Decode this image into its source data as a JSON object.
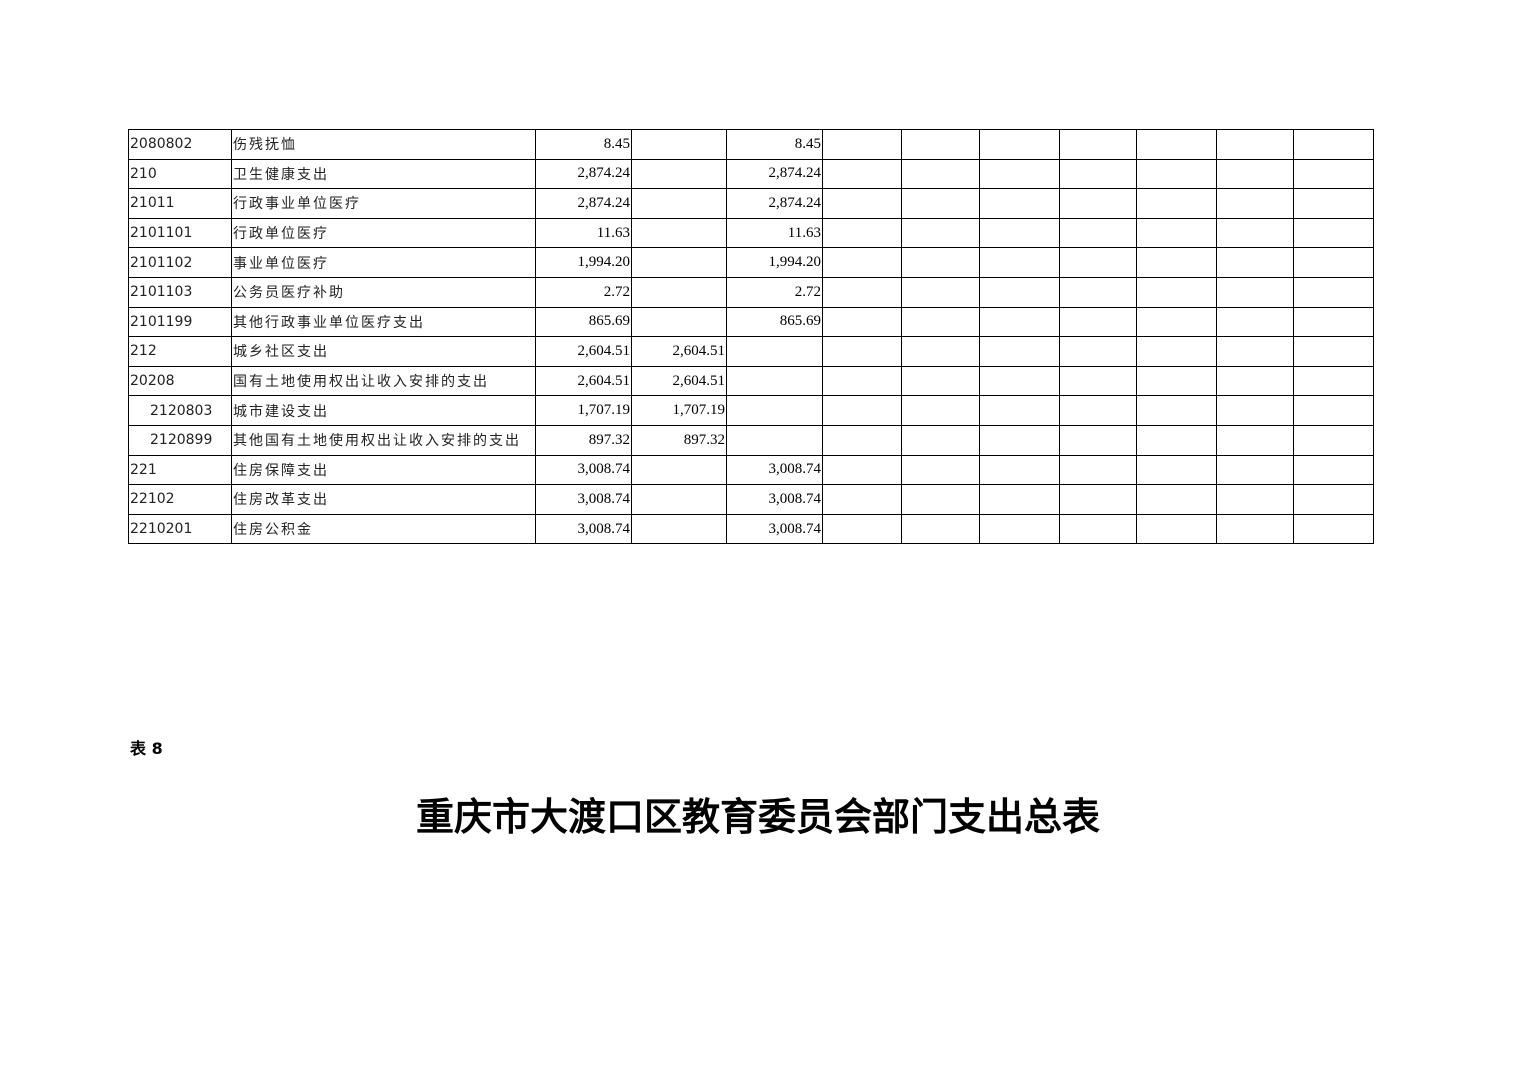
{
  "table": {
    "rows": [
      {
        "code": "2080802",
        "name": "伤残抚恤",
        "c1": "8.45",
        "c2": "",
        "c3": "8.45",
        "indent": false
      },
      {
        "code": "210",
        "name": "卫生健康支出",
        "c1": "2,874.24",
        "c2": "",
        "c3": "2,874.24",
        "indent": false
      },
      {
        "code": "21011",
        "name": "行政事业单位医疗",
        "c1": "2,874.24",
        "c2": "",
        "c3": "2,874.24",
        "indent": false
      },
      {
        "code": "2101101",
        "name": "行政单位医疗",
        "c1": "11.63",
        "c2": "",
        "c3": "11.63",
        "indent": false
      },
      {
        "code": "2101102",
        "name": "事业单位医疗",
        "c1": "1,994.20",
        "c2": "",
        "c3": "1,994.20",
        "indent": false
      },
      {
        "code": "2101103",
        "name": "公务员医疗补助",
        "c1": "2.72",
        "c2": "",
        "c3": "2.72",
        "indent": false
      },
      {
        "code": "2101199",
        "name": "其他行政事业单位医疗支出",
        "c1": "865.69",
        "c2": "",
        "c3": "865.69",
        "indent": false
      },
      {
        "code": "212",
        "name": "城乡社区支出",
        "c1": "2,604.51",
        "c2": "2,604.51",
        "c3": "",
        "indent": false
      },
      {
        "code": "20208",
        "name": "国有土地使用权出让收入安排的支出",
        "c1": "2,604.51",
        "c2": "2,604.51",
        "c3": "",
        "indent": false
      },
      {
        "code": "2120803",
        "name": "城市建设支出",
        "c1": "1,707.19",
        "c2": "1,707.19",
        "c3": "",
        "indent": true
      },
      {
        "code": "2120899",
        "name": "其他国有土地使用权出让收入安排的支出",
        "c1": "897.32",
        "c2": "897.32",
        "c3": "",
        "indent": true
      },
      {
        "code": "221",
        "name": "住房保障支出",
        "c1": "3,008.74",
        "c2": "",
        "c3": "3,008.74",
        "indent": false
      },
      {
        "code": "22102",
        "name": "住房改革支出",
        "c1": "3,008.74",
        "c2": "",
        "c3": "3,008.74",
        "indent": false
      },
      {
        "code": "2210201",
        "name": "住房公积金",
        "c1": "3,008.74",
        "c2": "",
        "c3": "3,008.74",
        "indent": false
      }
    ]
  },
  "next_table": {
    "label": "表 8",
    "title": "重庆市大渡口区教育委员会部门支出总表"
  }
}
